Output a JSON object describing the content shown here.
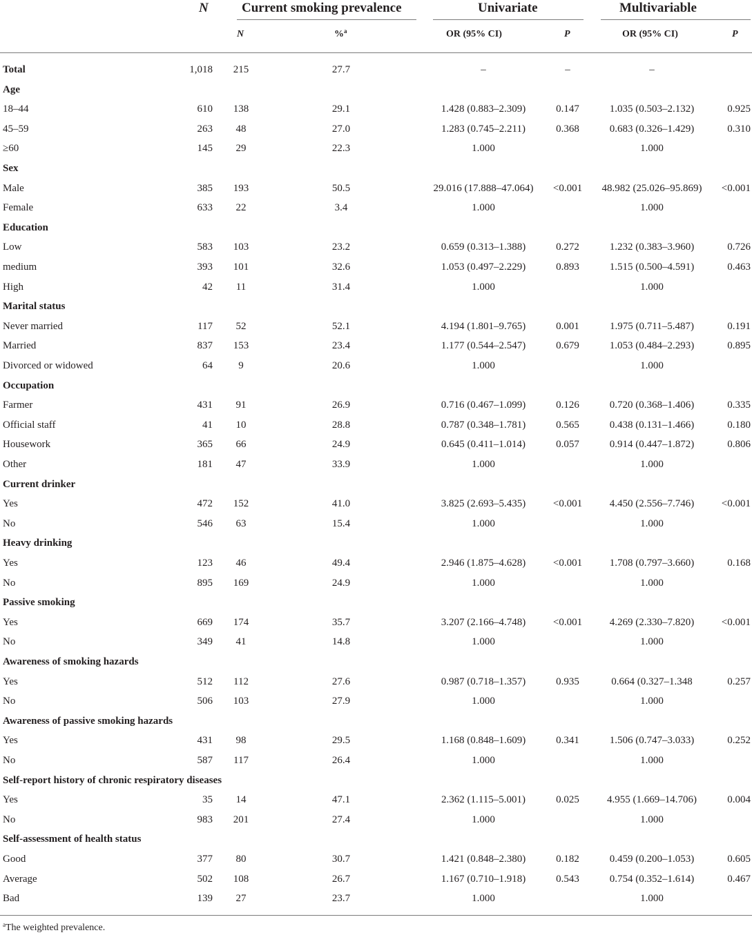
{
  "header": {
    "n": "N",
    "prevalence": "Current smoking prevalence",
    "univariate": "Univariate",
    "multivariable": "Multivariable",
    "sub_n": "N",
    "sub_pct": "%",
    "sub_pct_sup": "a",
    "sub_or": "OR (95% CI)",
    "sub_p": "P",
    "sub_or2": "OR (95% CI)",
    "sub_p2": "P"
  },
  "rows": [
    {
      "kind": "cat",
      "label": "Total",
      "n": "1,018",
      "sn": "215",
      "pct": "27.7",
      "uor": "–",
      "up": "–",
      "mor": "–",
      "mp": ""
    },
    {
      "kind": "cat",
      "label": "Age",
      "n": "",
      "sn": "",
      "pct": "",
      "uor": "",
      "up": "",
      "mor": "",
      "mp": ""
    },
    {
      "kind": "item",
      "label": "18–44",
      "n": "610",
      "sn": "138",
      "pct": "29.1",
      "uor": "1.428 (0.883–2.309)",
      "up": "0.147",
      "mor": "1.035 (0.503–2.132)",
      "mp": "0.925"
    },
    {
      "kind": "item",
      "label": "45–59",
      "n": "263",
      "sn": "48",
      "pct": "27.0",
      "uor": "1.283 (0.745–2.211)",
      "up": "0.368",
      "mor": "0.683 (0.326–1.429)",
      "mp": "0.310"
    },
    {
      "kind": "item",
      "label": "≥60",
      "n": "145",
      "sn": "29",
      "pct": "22.3",
      "uor": "1.000",
      "up": "",
      "mor": "1.000",
      "mp": ""
    },
    {
      "kind": "cat",
      "label": "Sex",
      "n": "",
      "sn": "",
      "pct": "",
      "uor": "",
      "up": "",
      "mor": "",
      "mp": ""
    },
    {
      "kind": "item",
      "label": "Male",
      "n": "385",
      "sn": "193",
      "pct": "50.5",
      "uor": "29.016 (17.888–47.064)",
      "up": "<0.001",
      "mor": "48.982 (25.026–95.869)",
      "mp": "<0.001"
    },
    {
      "kind": "item",
      "label": "Female",
      "n": "633",
      "sn": "22",
      "pct": "3.4",
      "uor": "1.000",
      "up": "",
      "mor": "1.000",
      "mp": ""
    },
    {
      "kind": "cat",
      "label": "Education",
      "n": "",
      "sn": "",
      "pct": "",
      "uor": "",
      "up": "",
      "mor": "",
      "mp": ""
    },
    {
      "kind": "item",
      "label": "Low",
      "n": "583",
      "sn": "103",
      "pct": "23.2",
      "uor": "0.659 (0.313–1.388)",
      "up": "0.272",
      "mor": "1.232 (0.383–3.960)",
      "mp": "0.726"
    },
    {
      "kind": "item",
      "label": "medium",
      "n": "393",
      "sn": "101",
      "pct": "32.6",
      "uor": "1.053 (0.497–2.229)",
      "up": "0.893",
      "mor": "1.515 (0.500–4.591)",
      "mp": "0.463"
    },
    {
      "kind": "item",
      "label": "High",
      "n": "42",
      "sn": "11",
      "pct": "31.4",
      "uor": "1.000",
      "up": "",
      "mor": "1.000",
      "mp": ""
    },
    {
      "kind": "cat",
      "label": "Marital status",
      "n": "",
      "sn": "",
      "pct": "",
      "uor": "",
      "up": "",
      "mor": "",
      "mp": ""
    },
    {
      "kind": "item",
      "label": "Never married",
      "n": "117",
      "sn": "52",
      "pct": "52.1",
      "uor": "4.194 (1.801–9.765)",
      "up": "0.001",
      "mor": "1.975 (0.711–5.487)",
      "mp": "0.191"
    },
    {
      "kind": "item",
      "label": "Married",
      "n": "837",
      "sn": "153",
      "pct": "23.4",
      "uor": "1.177 (0.544–2.547)",
      "up": "0.679",
      "mor": "1.053 (0.484–2.293)",
      "mp": "0.895"
    },
    {
      "kind": "item",
      "label": "Divorced or widowed",
      "n": "64",
      "sn": "9",
      "pct": "20.6",
      "uor": "1.000",
      "up": "",
      "mor": "1.000",
      "mp": ""
    },
    {
      "kind": "cat",
      "label": "Occupation",
      "n": "",
      "sn": "",
      "pct": "",
      "uor": "",
      "up": "",
      "mor": "",
      "mp": ""
    },
    {
      "kind": "item",
      "label": "Farmer",
      "n": "431",
      "sn": "91",
      "pct": "26.9",
      "uor": "0.716 (0.467–1.099)",
      "up": "0.126",
      "mor": "0.720 (0.368–1.406)",
      "mp": "0.335"
    },
    {
      "kind": "item",
      "label": "Official staff",
      "n": "41",
      "sn": "10",
      "pct": "28.8",
      "uor": "0.787 (0.348–1.781)",
      "up": "0.565",
      "mor": "0.438 (0.131–1.466)",
      "mp": "0.180"
    },
    {
      "kind": "item",
      "label": "Housework",
      "n": "365",
      "sn": "66",
      "pct": "24.9",
      "uor": "0.645 (0.411–1.014)",
      "up": "0.057",
      "mor": "0.914 (0.447–1.872)",
      "mp": "0.806"
    },
    {
      "kind": "item",
      "label": "Other",
      "n": "181",
      "sn": "47",
      "pct": "33.9",
      "uor": "1.000",
      "up": "",
      "mor": "1.000",
      "mp": ""
    },
    {
      "kind": "cat",
      "label": "Current drinker",
      "n": "",
      "sn": "",
      "pct": "",
      "uor": "",
      "up": "",
      "mor": "",
      "mp": ""
    },
    {
      "kind": "item",
      "label": "Yes",
      "n": "472",
      "sn": "152",
      "pct": "41.0",
      "uor": "3.825 (2.693–5.435)",
      "up": "<0.001",
      "mor": "4.450 (2.556–7.746)",
      "mp": "<0.001"
    },
    {
      "kind": "item",
      "label": "No",
      "n": "546",
      "sn": "63",
      "pct": "15.4",
      "uor": "1.000",
      "up": "",
      "mor": "1.000",
      "mp": ""
    },
    {
      "kind": "cat",
      "label": "Heavy drinking",
      "n": "",
      "sn": "",
      "pct": "",
      "uor": "",
      "up": "",
      "mor": "",
      "mp": ""
    },
    {
      "kind": "item",
      "label": "Yes",
      "n": "123",
      "sn": "46",
      "pct": "49.4",
      "uor": "2.946 (1.875–4.628)",
      "up": "<0.001",
      "mor": "1.708 (0.797–3.660)",
      "mp": "0.168"
    },
    {
      "kind": "item",
      "label": "No",
      "n": "895",
      "sn": "169",
      "pct": "24.9",
      "uor": "1.000",
      "up": "",
      "mor": "1.000",
      "mp": ""
    },
    {
      "kind": "cat",
      "label": "Passive smoking",
      "n": "",
      "sn": "",
      "pct": "",
      "uor": "",
      "up": "",
      "mor": "",
      "mp": ""
    },
    {
      "kind": "item",
      "label": "Yes",
      "n": "669",
      "sn": "174",
      "pct": "35.7",
      "uor": "3.207 (2.166–4.748)",
      "up": "<0.001",
      "mor": "4.269 (2.330–7.820)",
      "mp": "<0.001"
    },
    {
      "kind": "item",
      "label": "No",
      "n": "349",
      "sn": "41",
      "pct": "14.8",
      "uor": "1.000",
      "up": "",
      "mor": "1.000",
      "mp": ""
    },
    {
      "kind": "cat",
      "label": "Awareness of smoking hazards",
      "n": "",
      "sn": "",
      "pct": "",
      "uor": "",
      "up": "",
      "mor": "",
      "mp": ""
    },
    {
      "kind": "item",
      "label": "Yes",
      "n": "512",
      "sn": "112",
      "pct": "27.6",
      "uor": "0.987 (0.718–1.357)",
      "up": "0.935",
      "mor": "0.664 (0.327–1.348",
      "mp": "0.257"
    },
    {
      "kind": "item",
      "label": "No",
      "n": "506",
      "sn": "103",
      "pct": "27.9",
      "uor": "1.000",
      "up": "",
      "mor": "1.000",
      "mp": ""
    },
    {
      "kind": "cat",
      "label": "Awareness of passive smoking hazards",
      "n": "",
      "sn": "",
      "pct": "",
      "uor": "",
      "up": "",
      "mor": "",
      "mp": ""
    },
    {
      "kind": "item",
      "label": "Yes",
      "n": "431",
      "sn": "98",
      "pct": "29.5",
      "uor": "1.168 (0.848–1.609)",
      "up": "0.341",
      "mor": "1.506 (0.747–3.033)",
      "mp": "0.252"
    },
    {
      "kind": "item",
      "label": "No",
      "n": "587",
      "sn": "117",
      "pct": "26.4",
      "uor": "1.000",
      "up": "",
      "mor": "1.000",
      "mp": ""
    },
    {
      "kind": "cat",
      "label": "Self-report history of chronic respiratory diseases",
      "n": "",
      "sn": "",
      "pct": "",
      "uor": "",
      "up": "",
      "mor": "",
      "mp": ""
    },
    {
      "kind": "item",
      "label": "Yes",
      "n": "35",
      "sn": "14",
      "pct": "47.1",
      "uor": "2.362 (1.115–5.001)",
      "up": "0.025",
      "mor": "4.955 (1.669–14.706)",
      "mp": "0.004"
    },
    {
      "kind": "item",
      "label": "No",
      "n": "983",
      "sn": "201",
      "pct": "27.4",
      "uor": "1.000",
      "up": "",
      "mor": "1.000",
      "mp": ""
    },
    {
      "kind": "cat",
      "label": "Self-assessment of health status",
      "n": "",
      "sn": "",
      "pct": "",
      "uor": "",
      "up": "",
      "mor": "",
      "mp": ""
    },
    {
      "kind": "item",
      "label": "Good",
      "n": "377",
      "sn": "80",
      "pct": "30.7",
      "uor": "1.421 (0.848–2.380)",
      "up": "0.182",
      "mor": "0.459 (0.200–1.053)",
      "mp": "0.605"
    },
    {
      "kind": "item",
      "label": "Average",
      "n": "502",
      "sn": "108",
      "pct": "26.7",
      "uor": "1.167 (0.710–1.918)",
      "up": "0.543",
      "mor": "0.754 (0.352–1.614)",
      "mp": "0.467"
    },
    {
      "kind": "item",
      "label": "Bad",
      "n": "139",
      "sn": "27",
      "pct": "23.7",
      "uor": "1.000",
      "up": "",
      "mor": "1.000",
      "mp": ""
    }
  ],
  "footnote": {
    "sup": "a",
    "text": "The weighted prevalence."
  }
}
